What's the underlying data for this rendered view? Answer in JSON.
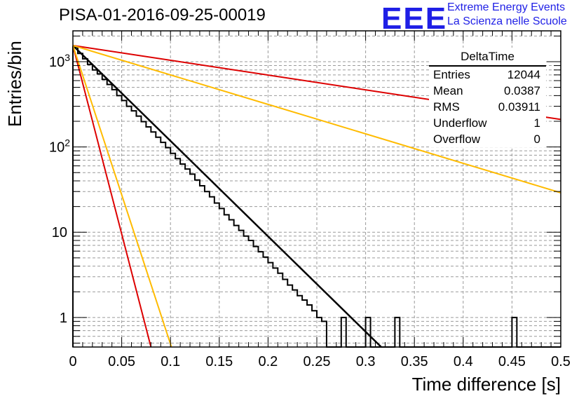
{
  "header": {
    "title": "PISA-01-2016-09-25-00019"
  },
  "logo": {
    "mark": "EEE",
    "line1": "Extreme Energy Events",
    "line2": "La Scienza nelle Scuole",
    "color": "#1f1fe6"
  },
  "stats": {
    "title": "DeltaTime",
    "rows": [
      {
        "label": "Entries",
        "value": "12044"
      },
      {
        "label": "Mean",
        "value": "0.0387"
      },
      {
        "label": "RMS",
        "value": "0.03911"
      },
      {
        "label": "Underflow",
        "value": "1"
      },
      {
        "label": "Overflow",
        "value": "0"
      }
    ]
  },
  "chart_data": {
    "type": "bar",
    "xlabel": "Time difference [s]",
    "ylabel": "Entries/bin",
    "xlim": [
      0,
      0.5
    ],
    "ylim": [
      0.45,
      2300
    ],
    "yscale": "log",
    "grid": true,
    "xticks": [
      "0",
      "0.05",
      "0.1",
      "0.15",
      "0.2",
      "0.25",
      "0.3",
      "0.35",
      "0.4",
      "0.45",
      "0.5"
    ],
    "xtick_values": [
      0,
      0.05,
      0.1,
      0.15,
      0.2,
      0.25,
      0.3,
      0.35,
      0.4,
      0.45,
      0.5
    ],
    "yticks": [
      {
        "value": 1,
        "label": "1"
      },
      {
        "value": 10,
        "label": "10"
      },
      {
        "value": 100,
        "label": "10^2"
      },
      {
        "value": 1000,
        "label": "10^3"
      }
    ],
    "histogram": {
      "bin_width": 0.005,
      "color": "#000000",
      "counts": [
        1480,
        1250,
        1080,
        930,
        800,
        720,
        620,
        540,
        470,
        400,
        350,
        300,
        265,
        230,
        198,
        172,
        150,
        130,
        113,
        98,
        84,
        73,
        63,
        55,
        48,
        41,
        35,
        30,
        26,
        22,
        19,
        16,
        14,
        12,
        10.5,
        9,
        8,
        6.8,
        5.9,
        5.1,
        4.4,
        3.8,
        3.3,
        2.8,
        2.4,
        2.1,
        1.8,
        1.6,
        1.4,
        1.2,
        1,
        0.9,
        0,
        0,
        0,
        1,
        0,
        0,
        0,
        0,
        1,
        0,
        0,
        0,
        0,
        0,
        1,
        0,
        0,
        0,
        0,
        0,
        0,
        0,
        0,
        0,
        0,
        0,
        0,
        0,
        0,
        0,
        0,
        0,
        0,
        0,
        0,
        0,
        0,
        0,
        1,
        0,
        0,
        0,
        0,
        0,
        0,
        0,
        0,
        0
      ]
    },
    "fit_lines": [
      {
        "color": "#000000",
        "x": [
          0,
          0.316
        ],
        "y": [
          1550,
          0.45
        ]
      },
      {
        "color": "#dd0000",
        "x": [
          0,
          0.5
        ],
        "y": [
          1550,
          210
        ]
      },
      {
        "color": "#ffbb00",
        "x": [
          0,
          0.5
        ],
        "y": [
          1550,
          29
        ]
      },
      {
        "color": "#dd0000",
        "x": [
          0,
          0.08
        ],
        "y": [
          1550,
          0.45
        ]
      },
      {
        "color": "#ffbb00",
        "x": [
          0,
          0.101
        ],
        "y": [
          1550,
          0.45
        ]
      }
    ]
  }
}
